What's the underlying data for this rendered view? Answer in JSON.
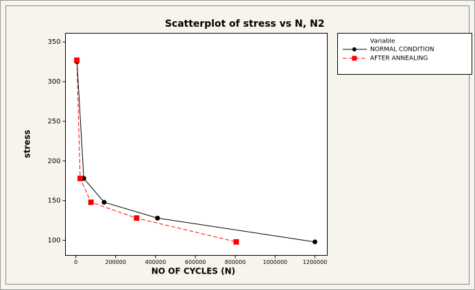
{
  "chart_data": {
    "type": "scatter",
    "title": "Scatterplot of stress vs N, N2",
    "x_label": "NO OF CYCLES (N)",
    "y_label": "stress",
    "legend_title": "Variable",
    "xlim": [
      -52000,
      1262000
    ],
    "xticks": [
      0,
      200000,
      400000,
      600000,
      800000,
      1000000,
      1200000
    ],
    "ylim": [
      81,
      361
    ],
    "yticks": [
      100,
      150,
      200,
      250,
      300,
      350
    ],
    "legend": "right",
    "series": [
      {
        "name": "NORMAL CONDITION",
        "color": "#000000",
        "line_style": "solid",
        "marker": "circle",
        "x": [
          6000,
          40000,
          142000,
          410000,
          1200000
        ],
        "values": [
          325,
          178,
          148,
          128,
          98
        ]
      },
      {
        "name": "AFTER ANNEALING",
        "color": "#ff0000",
        "line_style": "dashed",
        "marker": "square",
        "x": [
          5000,
          22000,
          76000,
          305000,
          805000
        ],
        "values": [
          327,
          178,
          148,
          128,
          98
        ]
      }
    ]
  }
}
